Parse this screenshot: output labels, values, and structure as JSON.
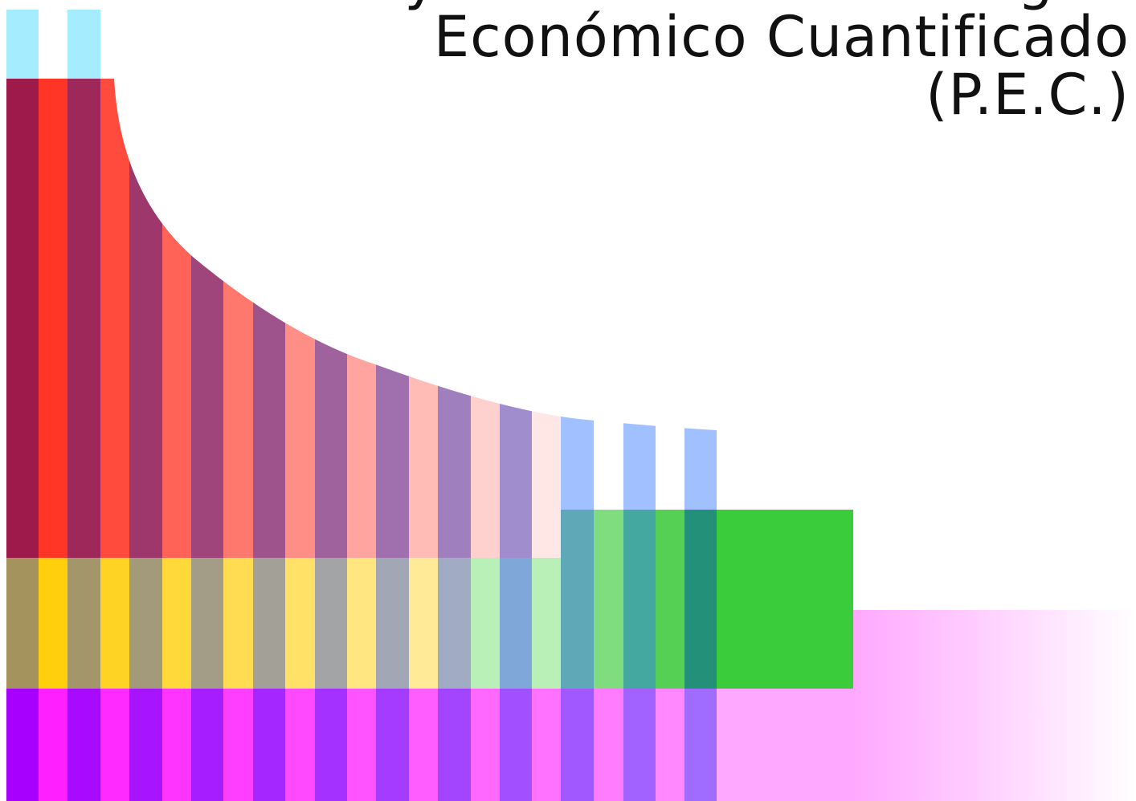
{
  "title": {
    "line1": "Proyecto de Estudio Integral",
    "line2": "Económico Cuantificado",
    "line3": "(P.E.C.)"
  },
  "colors": {
    "cyan": "#A6ECFF",
    "red": "#FF2A1A",
    "orange": "#FF5C2E",
    "slate_blue": "#7C8EE0",
    "yellow": "#FFCC00",
    "olive": "#A4935C",
    "green": "#3BCC3B",
    "teal": "#23917A",
    "purple": "#A800FF",
    "magenta": "#FF1AFF",
    "pink_fade": "#FFB8FF"
  }
}
